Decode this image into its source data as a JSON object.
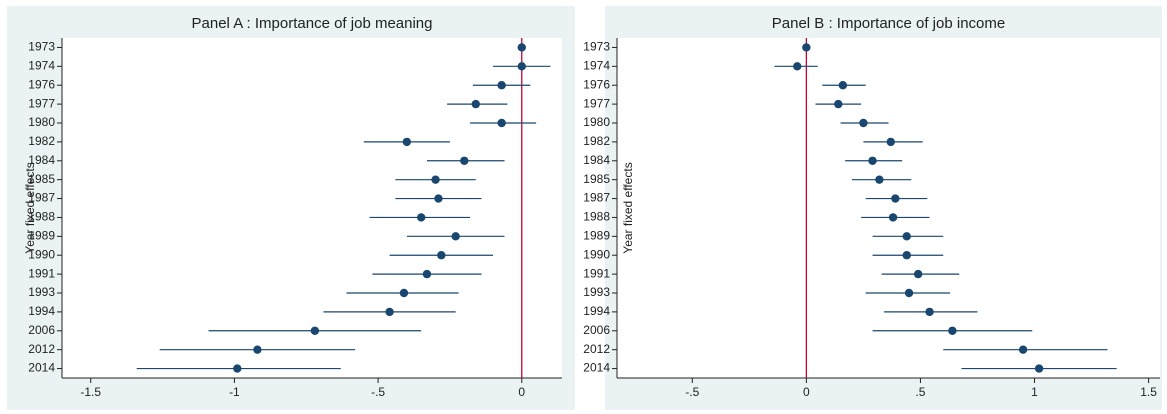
{
  "chart_data": [
    {
      "type": "dot",
      "title": "Panel A : Importance of job meaning",
      "y_label": "Year fixed effects",
      "categories": [
        "1973",
        "1974",
        "1976",
        "1977",
        "1980",
        "1982",
        "1984",
        "1985",
        "1987",
        "1988",
        "1989",
        "1990",
        "1991",
        "1993",
        "1994",
        "2006",
        "2012",
        "2014"
      ],
      "estimates": [
        0,
        0,
        -0.07,
        -0.16,
        -0.07,
        -0.4,
        -0.2,
        -0.3,
        -0.29,
        -0.35,
        -0.23,
        -0.28,
        -0.33,
        -0.41,
        -0.46,
        -0.72,
        -0.92,
        -0.99
      ],
      "ci_low": [
        0,
        -0.1,
        -0.17,
        -0.26,
        -0.18,
        -0.55,
        -0.33,
        -0.44,
        -0.44,
        -0.53,
        -0.4,
        -0.46,
        -0.52,
        -0.61,
        -0.69,
        -1.09,
        -1.26,
        -1.34
      ],
      "ci_high": [
        0,
        0.1,
        0.03,
        -0.05,
        0.05,
        -0.25,
        -0.06,
        -0.16,
        -0.14,
        -0.18,
        -0.06,
        -0.1,
        -0.14,
        -0.22,
        -0.23,
        -0.35,
        -0.58,
        -0.63
      ],
      "color": "#1a476f",
      "reference_line": 0,
      "reference_color": "#c10534",
      "xlim": [
        -1.6,
        0.14
      ],
      "xticks": [
        -1.5,
        -1,
        {
          "value": -0.5,
          "label": "-.5"
        },
        0
      ]
    },
    {
      "type": "dot",
      "title": "Panel B : Importance of job income",
      "y_label": "Year fixed effects",
      "categories": [
        "1973",
        "1974",
        "1976",
        "1977",
        "1980",
        "1982",
        "1984",
        "1985",
        "1987",
        "1988",
        "1989",
        "1990",
        "1991",
        "1993",
        "1994",
        "2006",
        "2012",
        "2014"
      ],
      "estimates": [
        0,
        -0.04,
        0.16,
        0.14,
        0.25,
        0.37,
        0.29,
        0.32,
        0.39,
        0.38,
        0.44,
        0.44,
        0.49,
        0.45,
        0.54,
        0.64,
        0.95,
        1.02
      ],
      "ci_low": [
        0,
        -0.14,
        0.07,
        0.04,
        0.15,
        0.25,
        0.17,
        0.2,
        0.26,
        0.24,
        0.29,
        0.29,
        0.33,
        0.26,
        0.34,
        0.29,
        0.6,
        0.68
      ],
      "ci_high": [
        0,
        0.05,
        0.26,
        0.24,
        0.36,
        0.51,
        0.42,
        0.46,
        0.53,
        0.54,
        0.6,
        0.6,
        0.67,
        0.63,
        0.75,
        0.99,
        1.32,
        1.36
      ],
      "color": "#1a476f",
      "reference_line": 0,
      "reference_color": "#c10534",
      "xlim": [
        -0.83,
        1.55
      ],
      "xticks": [
        {
          "value": -0.5,
          "label": "-.5"
        },
        0,
        {
          "value": 0.5,
          "label": ".5"
        },
        1,
        1.5
      ]
    }
  ]
}
